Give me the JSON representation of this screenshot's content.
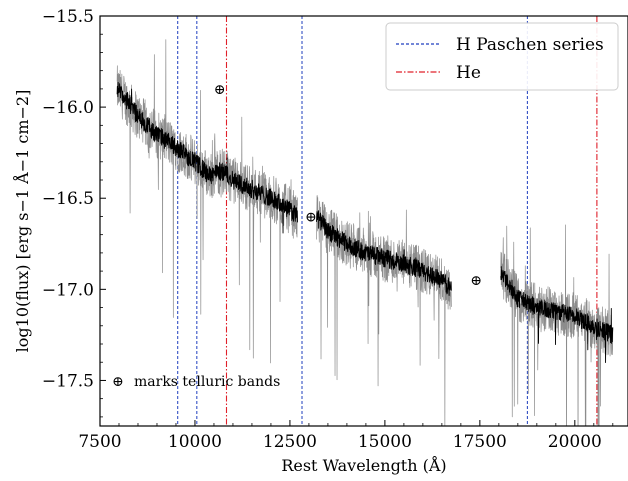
{
  "chart_data": {
    "type": "line",
    "xlabel": "Rest Wavelength (Å)",
    "ylabel": "log10(flux) [erg s−1 Å−1 cm−2]",
    "xlim": [
      7500,
      21400
    ],
    "ylim": [
      -17.75,
      -15.5
    ],
    "xticks": [
      7500,
      10000,
      12500,
      15000,
      17500,
      20000
    ],
    "yticks": [
      -15.5,
      -16.0,
      -16.5,
      -17.0,
      -17.5
    ],
    "xtick_labels": [
      "7500",
      "10000",
      "12500",
      "15000",
      "17500",
      "20000"
    ],
    "ytick_labels": [
      "−15.5",
      "−16.0",
      "−16.5",
      "−17.0",
      "−17.5"
    ],
    "legend": {
      "placement": "top-right",
      "entries": [
        {
          "label": "H Paschen series",
          "style": "dashed",
          "color": "#1f3fbf"
        },
        {
          "label": "He",
          "style": "dashdot",
          "color": "#e0202a"
        }
      ]
    },
    "annotation_note": "marks telluric bands",
    "telluric_symbol": "⊕",
    "telluric_markers": [
      {
        "x": 10650,
        "y": -15.9
      },
      {
        "x": 13050,
        "y": -16.6
      },
      {
        "x": 17400,
        "y": -16.95
      }
    ],
    "paschen_lines": [
      9546,
      10049,
      12818,
      18751
    ],
    "helium_lines": [
      10830,
      20581
    ],
    "series": [
      {
        "role": "smoothed spectrum",
        "color": "#000000",
        "segments": [
          {
            "x": [
              7950,
              8200,
              8500,
              9000,
              9500,
              10000,
              10400,
              10600,
              10800,
              11000,
              11500,
              12000,
              12400,
              12700
            ],
            "y": [
              -15.9,
              -15.96,
              -16.05,
              -16.15,
              -16.22,
              -16.3,
              -16.38,
              -16.35,
              -16.36,
              -16.4,
              -16.45,
              -16.5,
              -16.55,
              -16.6
            ]
          },
          {
            "x": [
              13200,
              13500,
              14000,
              14500,
              15000,
              15500,
              16000,
              16500,
              16750
            ],
            "y": [
              -16.6,
              -16.68,
              -16.75,
              -16.8,
              -16.83,
              -16.86,
              -16.9,
              -16.95,
              -17.0
            ]
          },
          {
            "x": [
              18050,
              18500,
              19000,
              19500,
              20000,
              20500,
              21000
            ],
            "y": [
              -16.9,
              -17.05,
              -17.1,
              -17.12,
              -17.15,
              -17.2,
              -17.25
            ]
          }
        ]
      },
      {
        "role": "unsmoothed spectrum",
        "color": "#8c8c8c",
        "segments": [
          {
            "x": [
              7950,
              8500,
              9000,
              9500,
              10000,
              10400,
              10600,
              10800,
              11000,
              11500,
              12000,
              12400,
              12700
            ],
            "y": [
              -15.9,
              -16.05,
              -16.15,
              -16.22,
              -16.3,
              -16.38,
              -16.35,
              -16.36,
              -16.4,
              -16.45,
              -16.5,
              -16.55,
              -16.6
            ]
          },
          {
            "x": [
              13200,
              13500,
              14000,
              14500,
              15000,
              15500,
              16000,
              16500,
              16750
            ],
            "y": [
              -16.6,
              -16.68,
              -16.75,
              -16.8,
              -16.83,
              -16.86,
              -16.9,
              -16.95,
              -17.0
            ]
          },
          {
            "x": [
              18050,
              18500,
              19000,
              19500,
              20000,
              20500,
              21000
            ],
            "y": [
              -16.9,
              -17.05,
              -17.1,
              -17.12,
              -17.15,
              -17.2,
              -17.25
            ]
          }
        ]
      }
    ]
  }
}
